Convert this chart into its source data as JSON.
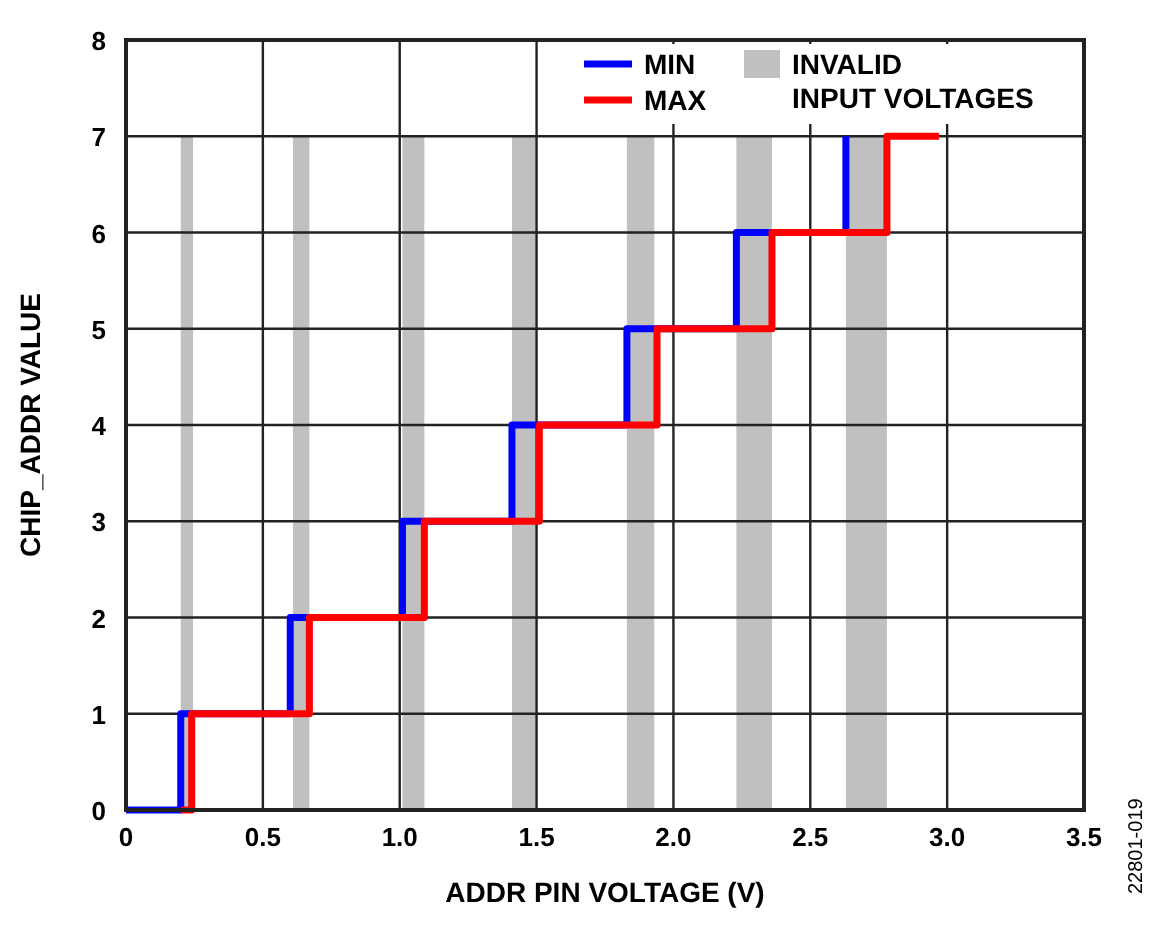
{
  "chart_data": {
    "type": "step",
    "xlabel": "ADDR PIN VOLTAGE (V)",
    "ylabel": "CHIP_ADDR VALUE",
    "xlim": [
      0,
      3.5
    ],
    "xticks": [
      0,
      0.5,
      {
        "value": 1,
        "label": "1.0"
      },
      1.5,
      {
        "value": 2,
        "label": "2.0"
      },
      2.5,
      {
        "value": 3,
        "label": "3.0"
      },
      3.5
    ],
    "ylim": [
      0,
      8
    ],
    "yticks": [
      0,
      1,
      2,
      3,
      4,
      5,
      6,
      7,
      8
    ],
    "grid": true,
    "legend": "top right",
    "line_style": "solid",
    "series": [
      {
        "name": "MIN",
        "color": "#0000ff",
        "x": [
          0,
          0.2,
          0.6,
          1.01,
          1.41,
          1.83,
          2.23,
          2.63
        ],
        "values": [
          0,
          1,
          2,
          3,
          4,
          5,
          6,
          7
        ]
      },
      {
        "name": "MAX",
        "color": "#ff0000",
        "x": [
          0.2,
          0.24,
          0.67,
          1.09,
          1.51,
          1.94,
          2.36,
          2.78,
          2.97
        ],
        "values": [
          0,
          1,
          2,
          3,
          4,
          5,
          6,
          7,
          7
        ]
      }
    ],
    "bands": [
      {
        "axis": "x",
        "from": 0.2,
        "to": 0.245,
        "label": "INVALID\nINPUT VOLTAGES",
        "color": "#c0c0c0"
      },
      {
        "axis": "x",
        "from": 0.61,
        "to": 0.67,
        "color": "#c0c0c0"
      },
      {
        "axis": "x",
        "from": 1.01,
        "to": 1.09,
        "color": "#c0c0c0"
      },
      {
        "axis": "x",
        "from": 1.41,
        "to": 1.5,
        "color": "#c0c0c0"
      },
      {
        "axis": "x",
        "from": 1.83,
        "to": 1.93,
        "color": "#c0c0c0"
      },
      {
        "axis": "x",
        "from": 2.23,
        "to": 2.36,
        "color": "#c0c0c0"
      },
      {
        "axis": "x",
        "from": 2.63,
        "to": 2.78,
        "color": "#c0c0c0"
      }
    ],
    "annotations": [
      "22801-019"
    ]
  }
}
